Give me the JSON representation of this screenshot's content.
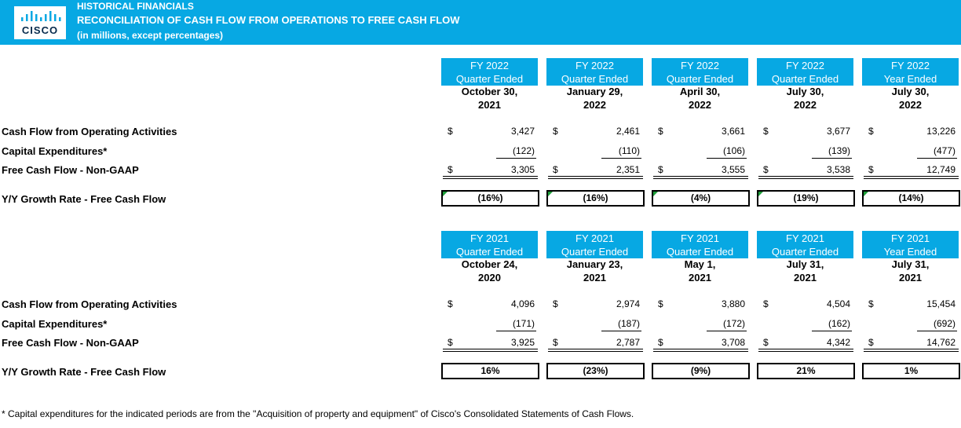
{
  "banner": {
    "logo_text": "CISCO",
    "line1": "HISTORICAL FINANCIALS",
    "line2": "RECONCILIATION OF CASH FLOW FROM OPERATIONS TO FREE CASH FLOW",
    "line3": "(in millions, except percentages)"
  },
  "colors": {
    "brand_blue": "#07A8E3",
    "logo_navy": "#062a4c"
  },
  "sections": [
    {
      "columns": [
        {
          "fy": "FY 2022",
          "period": "Quarter Ended",
          "date1": "October 30,",
          "date2": "2021"
        },
        {
          "fy": "FY 2022",
          "period": "Quarter Ended",
          "date1": "January 29,",
          "date2": "2022"
        },
        {
          "fy": "FY 2022",
          "period": "Quarter Ended",
          "date1": "April 30,",
          "date2": "2022"
        },
        {
          "fy": "FY 2022",
          "period": "Quarter Ended",
          "date1": "July 30,",
          "date2": "2022"
        },
        {
          "fy": "FY 2022",
          "period": "Year Ended",
          "date1": "July 30,",
          "date2": "2022"
        }
      ],
      "rows": [
        {
          "label": "Cash Flow from Operating Activities",
          "currency": "$",
          "values": [
            "3,427",
            "2,461",
            "3,661",
            "3,677",
            "13,226"
          ]
        },
        {
          "label": "Capital Expenditures*",
          "currency": "",
          "values": [
            "(122)",
            "(110)",
            "(106)",
            "(139)",
            "(477)"
          ]
        },
        {
          "label": "Free Cash Flow - Non-GAAP",
          "currency": "$",
          "values": [
            "3,305",
            "2,351",
            "3,555",
            "3,538",
            "12,749"
          ]
        }
      ],
      "growth": {
        "label": "Y/Y Growth Rate - Free Cash Flow",
        "values": [
          "(16%)",
          "(16%)",
          "(4%)",
          "(19%)",
          "(14%)"
        ]
      }
    },
    {
      "columns": [
        {
          "fy": "FY 2021",
          "period": "Quarter Ended",
          "date1": "October 24,",
          "date2": "2020"
        },
        {
          "fy": "FY 2021",
          "period": "Quarter Ended",
          "date1": "January 23,",
          "date2": "2021"
        },
        {
          "fy": "FY 2021",
          "period": "Quarter Ended",
          "date1": "May 1,",
          "date2": "2021"
        },
        {
          "fy": "FY 2021",
          "period": "Quarter Ended",
          "date1": "July 31,",
          "date2": "2021"
        },
        {
          "fy": "FY 2021",
          "period": "Year Ended",
          "date1": "July 31,",
          "date2": "2021"
        }
      ],
      "rows": [
        {
          "label": "Cash Flow from Operating Activities",
          "currency": "$",
          "values": [
            "4,096",
            "2,974",
            "3,880",
            "4,504",
            "15,454"
          ]
        },
        {
          "label": "Capital Expenditures*",
          "currency": "",
          "values": [
            "(171)",
            "(187)",
            "(172)",
            "(162)",
            "(692)"
          ]
        },
        {
          "label": "Free Cash Flow - Non-GAAP",
          "currency": "$",
          "values": [
            "3,925",
            "2,787",
            "3,708",
            "4,342",
            "14,762"
          ]
        }
      ],
      "growth": {
        "label": "Y/Y Growth Rate - Free Cash Flow",
        "values": [
          "16%",
          "(23%)",
          "(9%)",
          "21%",
          "1%"
        ]
      }
    }
  ],
  "footnote": "* Capital expenditures for the indicated periods are from the \"Acquisition of property and equipment\" of Cisco's Consolidated Statements of Cash Flows."
}
